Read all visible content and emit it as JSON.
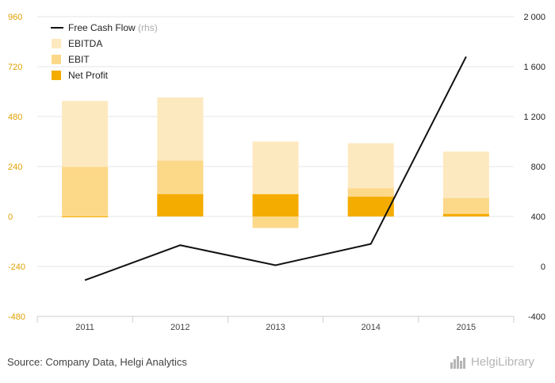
{
  "chart_data": {
    "type": "bar",
    "categories": [
      "2011",
      "2012",
      "2013",
      "2014",
      "2015"
    ],
    "series": [
      {
        "name": "EBITDA",
        "kind": "bar",
        "axis": "left",
        "color": "#fde9bf",
        "values": [
          555,
          572,
          360,
          352,
          312
        ]
      },
      {
        "name": "EBIT",
        "kind": "bar",
        "axis": "left",
        "color": "#fcd889",
        "values": [
          238,
          268,
          -55,
          135,
          88
        ]
      },
      {
        "name": "Net Profit",
        "kind": "bar",
        "axis": "left",
        "color": "#f5ac00",
        "values": [
          -2,
          107,
          107,
          95,
          12
        ]
      },
      {
        "name": "Free Cash Flow",
        "kind": "line",
        "axis": "right",
        "color": "#111111",
        "values": [
          -110,
          170,
          10,
          180,
          1680
        ]
      }
    ],
    "legend": [
      {
        "label": "Free Cash Flow",
        "note": "(rhs)",
        "symbol": "line",
        "color": "#111111"
      },
      {
        "label": "EBITDA",
        "note": "",
        "symbol": "box",
        "color": "#fde9bf"
      },
      {
        "label": "EBIT",
        "note": "",
        "symbol": "box",
        "color": "#fcd889"
      },
      {
        "label": "Net Profit",
        "note": "",
        "symbol": "box",
        "color": "#f5ac00"
      }
    ],
    "legend_position": "top-left",
    "y_left": {
      "min": -480,
      "max": 960,
      "ticks": [
        "960",
        "720",
        "480",
        "240",
        "0",
        "-240",
        "-480"
      ],
      "tick_values": [
        960,
        720,
        480,
        240,
        0,
        -240,
        -480
      ]
    },
    "y_right": {
      "min": -400,
      "max": 2000,
      "ticks": [
        "2 000",
        "1 600",
        "1 200",
        "800",
        "400",
        "0",
        "-400"
      ],
      "tick_values": [
        2000,
        1600,
        1200,
        800,
        400,
        0,
        -400
      ]
    },
    "grid": "horizontal",
    "title": "",
    "xlabel": "",
    "ylabel": ""
  },
  "footer": {
    "source": "Source: Company Data, Helgi Analytics",
    "brand": "HelgiLibrary"
  }
}
